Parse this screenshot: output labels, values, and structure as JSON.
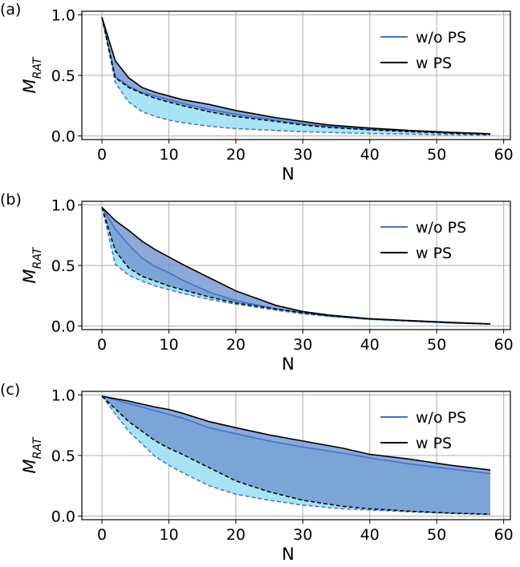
{
  "colors": {
    "without_ps": "#4472c4",
    "with_ps": "#000000",
    "fill_light": "#9ee0f5",
    "fill_dark": "#6f93cf",
    "grid": "#b0b0b0"
  },
  "chart_data": [
    {
      "type": "area",
      "panel_label": "(a)",
      "xlabel": "N",
      "ylabel": "M",
      "ylabel_sub": "RAT",
      "xlim": [
        -3,
        61
      ],
      "ylim": [
        -0.03,
        1.03
      ],
      "xticks": [
        0,
        10,
        20,
        30,
        40,
        50,
        60
      ],
      "yticks": [
        0.0,
        0.5,
        1.0
      ],
      "xtick_labels": [
        "0",
        "10",
        "20",
        "30",
        "40",
        "50",
        "60"
      ],
      "ytick_labels": [
        "0.0",
        "0.5",
        "1.0"
      ],
      "legend": [
        "w/o PS",
        "w PS"
      ],
      "legend_position": "top-right",
      "x": [
        0,
        2,
        4,
        6,
        8,
        10,
        12,
        16,
        20,
        26,
        30,
        34,
        40,
        46,
        52,
        58
      ],
      "series": [
        {
          "name": "w/o PS upper",
          "values": [
            0.98,
            0.49,
            0.41,
            0.36,
            0.33,
            0.3,
            0.27,
            0.22,
            0.18,
            0.13,
            0.1,
            0.08,
            0.055,
            0.04,
            0.025,
            0.015
          ]
        },
        {
          "name": "w/o PS lower",
          "values": [
            0.98,
            0.44,
            0.28,
            0.2,
            0.16,
            0.13,
            0.11,
            0.08,
            0.06,
            0.045,
            0.035,
            0.028,
            0.02,
            0.015,
            0.01,
            0.008
          ]
        },
        {
          "name": "w PS upper",
          "values": [
            0.98,
            0.62,
            0.48,
            0.4,
            0.36,
            0.33,
            0.3,
            0.26,
            0.21,
            0.15,
            0.12,
            0.09,
            0.065,
            0.045,
            0.03,
            0.018
          ]
        },
        {
          "name": "w PS lower",
          "values": [
            0.98,
            0.48,
            0.4,
            0.35,
            0.31,
            0.28,
            0.25,
            0.2,
            0.16,
            0.12,
            0.09,
            0.07,
            0.05,
            0.035,
            0.022,
            0.014
          ]
        }
      ]
    },
    {
      "type": "area",
      "panel_label": "(b)",
      "xlabel": "N",
      "ylabel": "M",
      "ylabel_sub": "RAT",
      "xlim": [
        -3,
        61
      ],
      "ylim": [
        -0.03,
        1.03
      ],
      "xticks": [
        0,
        10,
        20,
        30,
        40,
        50,
        60
      ],
      "yticks": [
        0.0,
        0.5,
        1.0
      ],
      "xtick_labels": [
        "0",
        "10",
        "20",
        "30",
        "40",
        "50",
        "60"
      ],
      "ytick_labels": [
        "0.0",
        "0.5",
        "1.0"
      ],
      "legend": [
        "w/o PS",
        "w PS"
      ],
      "legend_position": "top-right",
      "x": [
        0,
        2,
        4,
        6,
        8,
        10,
        12,
        16,
        20,
        26,
        30,
        34,
        40,
        46,
        52,
        58
      ],
      "series": [
        {
          "name": "w/o PS upper",
          "values": [
            0.98,
            0.8,
            0.67,
            0.56,
            0.49,
            0.44,
            0.38,
            0.28,
            0.21,
            0.14,
            0.11,
            0.08,
            0.055,
            0.04,
            0.025,
            0.015
          ]
        },
        {
          "name": "w/o PS lower",
          "values": [
            0.98,
            0.51,
            0.42,
            0.37,
            0.33,
            0.3,
            0.27,
            0.22,
            0.18,
            0.13,
            0.1,
            0.08,
            0.055,
            0.04,
            0.025,
            0.015
          ]
        },
        {
          "name": "w PS upper",
          "values": [
            0.98,
            0.87,
            0.79,
            0.7,
            0.63,
            0.57,
            0.51,
            0.4,
            0.29,
            0.17,
            0.12,
            0.09,
            0.06,
            0.045,
            0.03,
            0.018
          ]
        },
        {
          "name": "w PS lower",
          "values": [
            0.98,
            0.62,
            0.48,
            0.41,
            0.37,
            0.33,
            0.3,
            0.24,
            0.19,
            0.14,
            0.11,
            0.085,
            0.06,
            0.042,
            0.028,
            0.016
          ]
        }
      ]
    },
    {
      "type": "area",
      "panel_label": "(c)",
      "xlabel": "N",
      "ylabel": "M",
      "ylabel_sub": "RAT",
      "xlim": [
        -3,
        61
      ],
      "ylim": [
        -0.03,
        1.03
      ],
      "xticks": [
        0,
        10,
        20,
        30,
        40,
        50,
        60
      ],
      "yticks": [
        0.0,
        0.5,
        1.0
      ],
      "xtick_labels": [
        "0",
        "10",
        "20",
        "30",
        "40",
        "50",
        "60"
      ],
      "ytick_labels": [
        "0.0",
        "0.5",
        "1.0"
      ],
      "legend": [
        "w/o PS",
        "w PS"
      ],
      "legend_position": "top-right",
      "x": [
        0,
        4,
        8,
        10,
        12,
        16,
        20,
        25,
        30,
        36,
        40,
        46,
        52,
        58
      ],
      "series": [
        {
          "name": "w/o PS upper",
          "values": [
            0.99,
            0.93,
            0.87,
            0.84,
            0.81,
            0.73,
            0.68,
            0.62,
            0.57,
            0.52,
            0.48,
            0.43,
            0.39,
            0.35
          ]
        },
        {
          "name": "w/o PS lower",
          "values": [
            0.99,
            0.7,
            0.49,
            0.42,
            0.36,
            0.25,
            0.18,
            0.13,
            0.09,
            0.06,
            0.05,
            0.035,
            0.022,
            0.012
          ]
        },
        {
          "name": "w PS upper",
          "values": [
            0.99,
            0.95,
            0.9,
            0.88,
            0.85,
            0.78,
            0.73,
            0.67,
            0.62,
            0.56,
            0.51,
            0.47,
            0.42,
            0.38
          ]
        },
        {
          "name": "w PS lower",
          "values": [
            0.99,
            0.78,
            0.62,
            0.56,
            0.51,
            0.4,
            0.29,
            0.2,
            0.13,
            0.08,
            0.06,
            0.04,
            0.025,
            0.015
          ]
        }
      ]
    }
  ]
}
